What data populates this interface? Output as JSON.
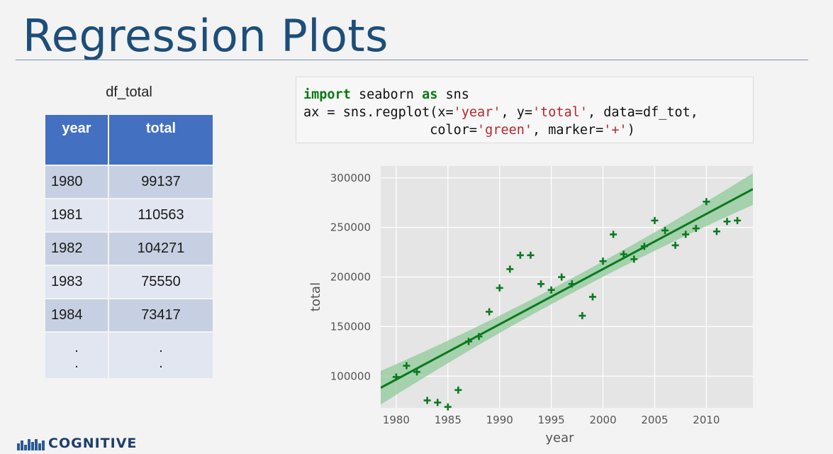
{
  "slide": {
    "title": "Regression Plots",
    "logo_text": "COGNITIVE"
  },
  "table": {
    "caption": "df_total",
    "headers": [
      "year",
      "total"
    ],
    "rows": [
      [
        "1980",
        "99137"
      ],
      [
        "1981",
        "110563"
      ],
      [
        "1982",
        "104271"
      ],
      [
        "1983",
        "75550"
      ],
      [
        "1984",
        "73417"
      ]
    ],
    "ellipsis": [
      ".",
      "."
    ]
  },
  "code": {
    "line1_kw1": "import",
    "line1_mid": " seaborn ",
    "line1_kw2": "as",
    "line1_end": " sns",
    "line2_a": "ax = sns.regplot(x=",
    "line2_s1": "'year'",
    "line2_b": ", y=",
    "line2_s2": "'total'",
    "line2_c": ", data=df_tot,",
    "line3_a": "                color=",
    "line3_s1": "'green'",
    "line3_b": ", marker=",
    "line3_s2": "'+'",
    "line3_c": ")"
  },
  "chart_data": {
    "type": "scatter",
    "xlabel": "year",
    "ylabel": "total",
    "xlim": [
      1978.5,
      2014.5
    ],
    "ylim": [
      68000,
      312000
    ],
    "xticks": [
      1980,
      1985,
      1990,
      1995,
      2000,
      2005,
      2010
    ],
    "yticks": [
      100000,
      150000,
      200000,
      250000,
      300000
    ],
    "grid": true,
    "marker": "+",
    "color": "#0a7a1f",
    "points": [
      [
        1980,
        99137
      ],
      [
        1981,
        110563
      ],
      [
        1982,
        104271
      ],
      [
        1983,
        75550
      ],
      [
        1984,
        73417
      ],
      [
        1985,
        69000
      ],
      [
        1986,
        86000
      ],
      [
        1987,
        135000
      ],
      [
        1988,
        140000
      ],
      [
        1989,
        165000
      ],
      [
        1990,
        189000
      ],
      [
        1991,
        208000
      ],
      [
        1992,
        222000
      ],
      [
        1993,
        222000
      ],
      [
        1994,
        193000
      ],
      [
        1995,
        187000
      ],
      [
        1996,
        200000
      ],
      [
        1997,
        193000
      ],
      [
        1998,
        161000
      ],
      [
        1999,
        180000
      ],
      [
        2000,
        216000
      ],
      [
        2001,
        243000
      ],
      [
        2002,
        223000
      ],
      [
        2003,
        218000
      ],
      [
        2004,
        231000
      ],
      [
        2005,
        257000
      ],
      [
        2006,
        247000
      ],
      [
        2007,
        232000
      ],
      [
        2008,
        243000
      ],
      [
        2009,
        249000
      ],
      [
        2010,
        276000
      ],
      [
        2011,
        246000
      ],
      [
        2012,
        256000
      ],
      [
        2013,
        257000
      ]
    ],
    "regression": {
      "slope": 5567,
      "intercept": -10926000
    },
    "ci_halfwidth": {
      "at_xmin": 17000,
      "at_center": 7500,
      "at_xmax": 16000
    }
  },
  "colors": {
    "title": "#1d4e79",
    "table_header": "#4370c1",
    "plot_bg": "#e5e5e5",
    "band": "#8fc99a",
    "regression_line": "#0a7a1f"
  }
}
